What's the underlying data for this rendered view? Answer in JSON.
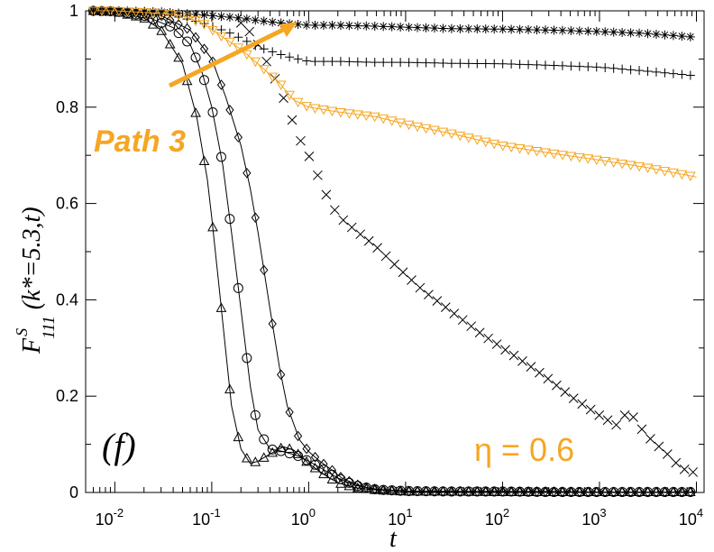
{
  "chart_data": {
    "type": "scatter",
    "xscale": "log",
    "xlim": [
      0.005,
      12000
    ],
    "ylim": [
      0,
      1
    ],
    "grid": false,
    "xlabel": "t",
    "ylabel": {
      "main": "F",
      "superscript": "S",
      "subscript": "111",
      "args": " (k*=5.3,t)"
    },
    "xticks": [
      {
        "base": "10",
        "exp": "-2",
        "value": 0.01
      },
      {
        "base": "10",
        "exp": "-1",
        "value": 0.1
      },
      {
        "base": "10",
        "exp": "0",
        "value": 1
      },
      {
        "base": "10",
        "exp": "1",
        "value": 10
      },
      {
        "base": "10",
        "exp": "2",
        "value": 100
      },
      {
        "base": "10",
        "exp": "3",
        "value": 1000
      },
      {
        "base": "10",
        "exp": "4",
        "value": 10000
      }
    ],
    "yticks": [
      {
        "label": "0",
        "value": 0
      },
      {
        "label": "0.2",
        "value": 0.2
      },
      {
        "label": "0.4",
        "value": 0.4
      },
      {
        "label": "0.6",
        "value": 0.6
      },
      {
        "label": "0.8",
        "value": 0.8
      },
      {
        "label": "1",
        "value": 1
      }
    ],
    "annotations": {
      "panel": "(f)",
      "path": "Path 3",
      "eta": "η = 0.6"
    },
    "colors": {
      "black": "#000000",
      "orange": "#F5A623"
    },
    "series": [
      {
        "marker": "triangle-up",
        "color": "#000000",
        "line": true,
        "points": [
          [
            0.006,
            1.0
          ],
          [
            0.01,
            0.998
          ],
          [
            0.02,
            0.985
          ],
          [
            0.03,
            0.96
          ],
          [
            0.05,
            0.89
          ],
          [
            0.07,
            0.78
          ],
          [
            0.09,
            0.65
          ],
          [
            0.1,
            0.57
          ],
          [
            0.12,
            0.42
          ],
          [
            0.14,
            0.29
          ],
          [
            0.16,
            0.18
          ],
          [
            0.2,
            0.09
          ],
          [
            0.25,
            0.06
          ],
          [
            0.3,
            0.065
          ],
          [
            0.4,
            0.08
          ],
          [
            0.55,
            0.095
          ],
          [
            0.7,
            0.088
          ],
          [
            1.0,
            0.06
          ],
          [
            1.5,
            0.035
          ],
          [
            2.0,
            0.02
          ],
          [
            3.0,
            0.01
          ],
          [
            5.0,
            0.005
          ],
          [
            10,
            0.002
          ],
          [
            30,
            0.002
          ],
          [
            100,
            0.001
          ],
          [
            300,
            0.001
          ],
          [
            1000,
            0.001
          ],
          [
            3000,
            0.001
          ],
          [
            10000,
            0.001
          ]
        ]
      },
      {
        "marker": "circle",
        "color": "#000000",
        "line": true,
        "points": [
          [
            0.006,
            1.0
          ],
          [
            0.01,
            0.999
          ],
          [
            0.02,
            0.99
          ],
          [
            0.04,
            0.965
          ],
          [
            0.06,
            0.93
          ],
          [
            0.08,
            0.87
          ],
          [
            0.1,
            0.8
          ],
          [
            0.13,
            0.68
          ],
          [
            0.16,
            0.54
          ],
          [
            0.2,
            0.38
          ],
          [
            0.25,
            0.22
          ],
          [
            0.3,
            0.13
          ],
          [
            0.4,
            0.09
          ],
          [
            0.55,
            0.085
          ],
          [
            0.8,
            0.075
          ],
          [
            1.0,
            0.065
          ],
          [
            1.5,
            0.045
          ],
          [
            2.0,
            0.03
          ],
          [
            3.0,
            0.015
          ],
          [
            5.0,
            0.006
          ],
          [
            10,
            0.003
          ],
          [
            30,
            0.002
          ],
          [
            100,
            0.002
          ],
          [
            300,
            0.001
          ],
          [
            1000,
            0.001
          ],
          [
            3000,
            0.001
          ],
          [
            10000,
            0.001
          ]
        ]
      },
      {
        "marker": "diamond",
        "color": "#000000",
        "line": true,
        "points": [
          [
            0.006,
            1.0
          ],
          [
            0.01,
            0.999
          ],
          [
            0.03,
            0.99
          ],
          [
            0.06,
            0.96
          ],
          [
            0.1,
            0.9
          ],
          [
            0.14,
            0.82
          ],
          [
            0.2,
            0.72
          ],
          [
            0.25,
            0.63
          ],
          [
            0.3,
            0.54
          ],
          [
            0.4,
            0.38
          ],
          [
            0.5,
            0.26
          ],
          [
            0.6,
            0.18
          ],
          [
            0.8,
            0.11
          ],
          [
            1.0,
            0.085
          ],
          [
            1.3,
            0.065
          ],
          [
            1.7,
            0.048
          ],
          [
            2.2,
            0.03
          ],
          [
            3.0,
            0.018
          ],
          [
            4.0,
            0.01
          ],
          [
            6.0,
            0.005
          ],
          [
            10,
            0.003
          ],
          [
            30,
            0.002
          ],
          [
            100,
            0.002
          ],
          [
            300,
            0.002
          ],
          [
            1000,
            0.001
          ],
          [
            3000,
            0.001
          ],
          [
            10000,
            0.001
          ]
        ]
      },
      {
        "marker": "x",
        "color": "#000000",
        "line": false,
        "points": [
          [
            0.2,
            0.975
          ],
          [
            0.25,
            0.955
          ],
          [
            0.3,
            0.93
          ],
          [
            0.4,
            0.88
          ],
          [
            0.5,
            0.84
          ],
          [
            0.6,
            0.8
          ],
          [
            0.7,
            0.765
          ],
          [
            0.8,
            0.735
          ],
          [
            1.0,
            0.7
          ],
          [
            1.2,
            0.665
          ],
          [
            1.5,
            0.62
          ],
          [
            2,
            0.575
          ],
          [
            3,
            0.545
          ],
          [
            5,
            0.51
          ],
          [
            8,
            0.47
          ],
          [
            15,
            0.42
          ],
          [
            30,
            0.375
          ],
          [
            60,
            0.33
          ],
          [
            100,
            0.3
          ],
          [
            200,
            0.26
          ],
          [
            300,
            0.235
          ],
          [
            500,
            0.2
          ],
          [
            1000,
            0.16
          ],
          [
            1500,
            0.14
          ],
          [
            2000,
            0.17
          ],
          [
            3000,
            0.12
          ],
          [
            5000,
            0.08
          ],
          [
            7000,
            0.05
          ],
          [
            10000,
            0.04
          ]
        ]
      },
      {
        "marker": "plus",
        "color": "#000000",
        "line": false,
        "points": [
          [
            0.006,
            1.0
          ],
          [
            0.01,
            1.0
          ],
          [
            0.02,
            0.998
          ],
          [
            0.04,
            0.99
          ],
          [
            0.08,
            0.975
          ],
          [
            0.15,
            0.955
          ],
          [
            0.3,
            0.925
          ],
          [
            0.6,
            0.905
          ],
          [
            1.0,
            0.895
          ],
          [
            2,
            0.895
          ],
          [
            5,
            0.893
          ],
          [
            10,
            0.893
          ],
          [
            30,
            0.891
          ],
          [
            100,
            0.89
          ],
          [
            300,
            0.887
          ],
          [
            1000,
            0.883
          ],
          [
            3000,
            0.875
          ],
          [
            10000,
            0.865
          ]
        ]
      },
      {
        "marker": "asterisk",
        "color": "#000000",
        "line": false,
        "points": [
          [
            0.006,
            1.0
          ],
          [
            0.01,
            1.0
          ],
          [
            0.03,
            0.998
          ],
          [
            0.1,
            0.99
          ],
          [
            0.2,
            0.985
          ],
          [
            0.3,
            0.98
          ],
          [
            0.5,
            0.975
          ],
          [
            1.0,
            0.97
          ],
          [
            2,
            0.97
          ],
          [
            5,
            0.968
          ],
          [
            10,
            0.966
          ],
          [
            30,
            0.963
          ],
          [
            100,
            0.962
          ],
          [
            300,
            0.96
          ],
          [
            1000,
            0.957
          ],
          [
            3000,
            0.953
          ],
          [
            10000,
            0.945
          ]
        ]
      },
      {
        "marker": "triangle-down",
        "color": "#F5A623",
        "line": true,
        "points": [
          [
            0.006,
            1.0
          ],
          [
            0.01,
            1.0
          ],
          [
            0.03,
            0.995
          ],
          [
            0.05,
            0.99
          ],
          [
            0.08,
            0.975
          ],
          [
            0.12,
            0.95
          ],
          [
            0.2,
            0.92
          ],
          [
            0.3,
            0.89
          ],
          [
            0.5,
            0.85
          ],
          [
            0.7,
            0.815
          ],
          [
            1.0,
            0.8
          ],
          [
            2,
            0.79
          ],
          [
            5,
            0.78
          ],
          [
            10,
            0.765
          ],
          [
            30,
            0.745
          ],
          [
            100,
            0.72
          ],
          [
            300,
            0.705
          ],
          [
            1000,
            0.69
          ],
          [
            3000,
            0.675
          ],
          [
            10000,
            0.655
          ]
        ]
      }
    ]
  }
}
